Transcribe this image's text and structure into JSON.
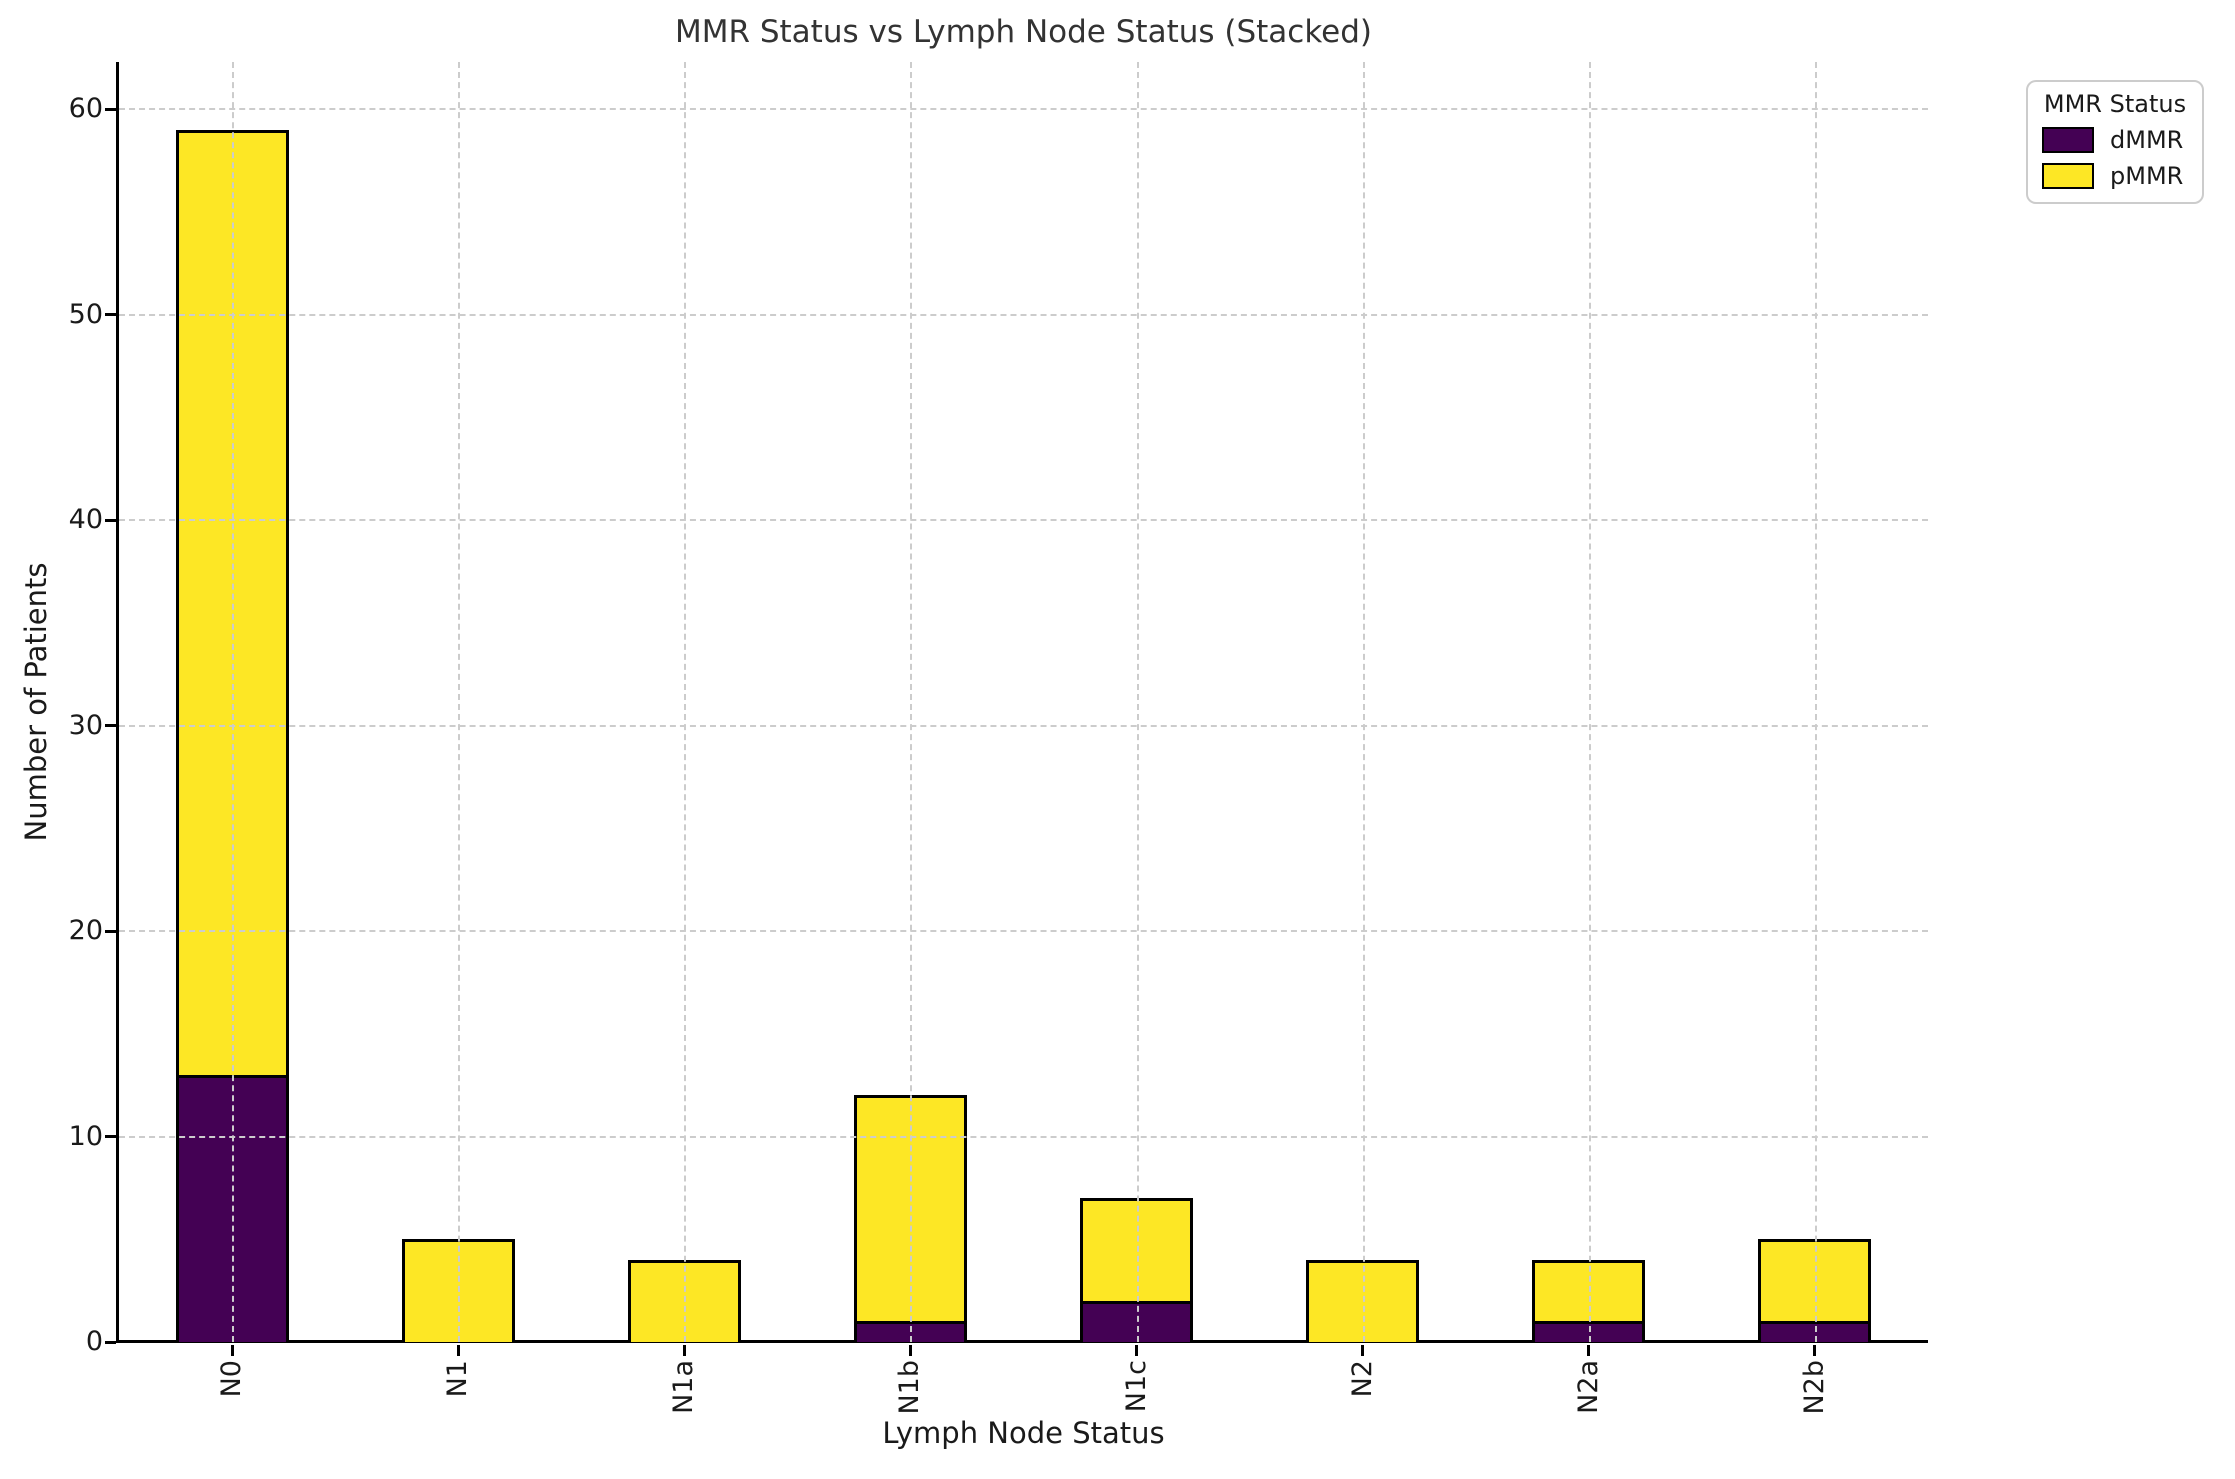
{
  "chart_data": {
    "type": "bar",
    "stacked": true,
    "title": "MMR Status vs Lymph Node Status (Stacked)",
    "xlabel": "Lymph Node Status",
    "ylabel": "Number of Patients",
    "categories": [
      "N0",
      "N1",
      "N1a",
      "N1b",
      "N1c",
      "N2",
      "N2a",
      "N2b"
    ],
    "series": [
      {
        "name": "dMMR",
        "color": "#440154",
        "values": [
          13,
          0,
          0,
          1,
          2,
          0,
          1,
          1
        ]
      },
      {
        "name": "pMMR",
        "color": "#FDE725",
        "values": [
          46,
          5,
          4,
          11,
          5,
          4,
          3,
          4
        ]
      }
    ],
    "ylim": [
      0,
      62.3
    ],
    "yticks": [
      0,
      10,
      20,
      30,
      40,
      50,
      60
    ],
    "grid": true,
    "grid_style": "dashed",
    "legend": {
      "title": "MMR Status",
      "position": "upper-right-outside"
    }
  },
  "colors": {
    "background": "#ffffff",
    "grid": "#cccccc",
    "axis": "#000000",
    "bar_edge": "#000000",
    "text": "#1a1a1a",
    "legend_border": "#cccccc"
  }
}
